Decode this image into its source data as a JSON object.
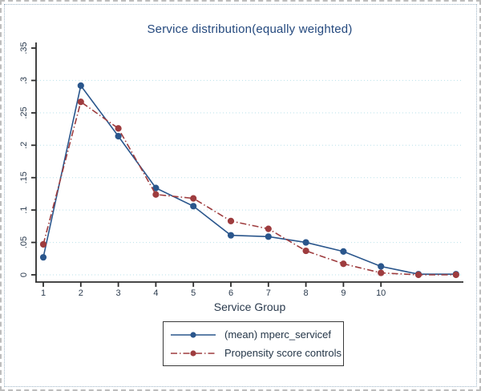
{
  "chart_data": {
    "type": "line",
    "title": "Service distribution(equally weighted)",
    "xlabel": "Service Group",
    "ylabel": "",
    "x": [
      1,
      2,
      3,
      4,
      5,
      6,
      7,
      8,
      9,
      10,
      11,
      12
    ],
    "x_tick_labels": [
      "1",
      "2",
      "3",
      "4",
      "5",
      "6",
      "7",
      "8",
      "9",
      "10"
    ],
    "y_ticks": [
      0,
      0.05,
      0.1,
      0.15,
      0.2,
      0.25,
      0.3,
      0.35
    ],
    "y_tick_labels": [
      "0",
      ".05",
      ".1",
      ".15",
      ".2",
      ".25",
      ".3",
      ".35"
    ],
    "y_gridlines": [
      0,
      0.05,
      0.1,
      0.15,
      0.2,
      0.25,
      0.3
    ],
    "ylim": [
      0,
      0.35
    ],
    "grid": "horizontal-dotted",
    "legend_position": "bottom-center-boxed",
    "series": [
      {
        "name": "(mean) mperc_servicef",
        "color": "#2a568c",
        "style": "solid",
        "marker": "circle",
        "values": [
          0.027,
          0.292,
          0.214,
          0.134,
          0.106,
          0.061,
          0.059,
          0.05,
          0.036,
          0.013,
          0.001,
          0.001
        ]
      },
      {
        "name": "Propensity score controls",
        "color": "#9e3c3e",
        "style": "dash-dot",
        "marker": "circle",
        "values": [
          0.047,
          0.267,
          0.226,
          0.124,
          0.118,
          0.083,
          0.071,
          0.037,
          0.017,
          0.003,
          0.0,
          0.0
        ]
      }
    ],
    "colors": {
      "gridline": "#b9e0ea",
      "axis": "#2e2e2e",
      "title_text": "#24497e",
      "tick_text": "#2b3b4e"
    }
  }
}
